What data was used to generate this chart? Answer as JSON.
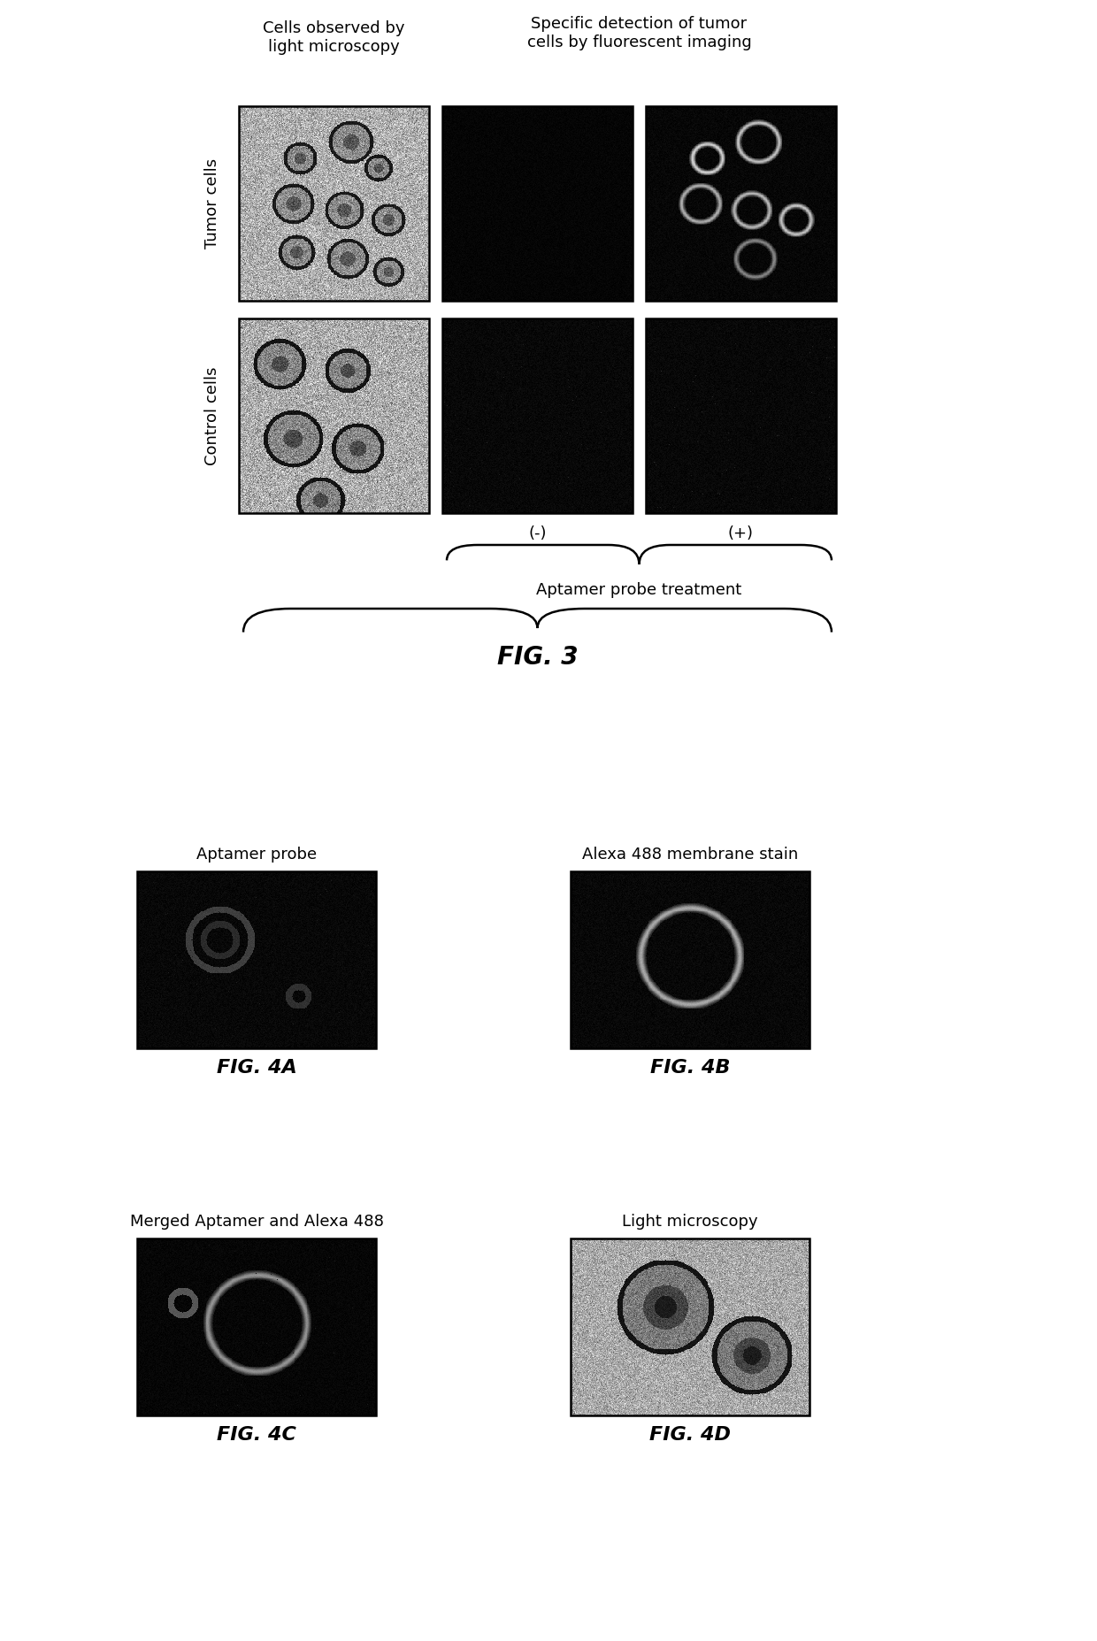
{
  "fig3_title": "FIG. 3",
  "fig3_col_headers": [
    "Cells observed by\nlight microscopy",
    "Specific detection of tumor\ncells by fluorescent imaging"
  ],
  "fig3_row_labels": [
    "Tumor cells",
    "Control cells"
  ],
  "fig3_brace_label_minus": "(-)",
  "fig3_brace_label_plus": "(+)",
  "fig3_aptamer_label": "Aptamer probe treatment",
  "fig4a_title": "Aptamer probe",
  "fig4a_label": "FIG. 4A",
  "fig4b_title": "Alexa 488 membrane stain",
  "fig4b_label": "FIG. 4B",
  "fig4c_title": "Merged Aptamer and Alexa 488",
  "fig4c_label": "FIG. 4C",
  "fig4d_title": "Light microscopy",
  "fig4d_label": "FIG. 4D",
  "bg_color": "#ffffff",
  "text_color": "#000000",
  "fig_label_fontsize": 16,
  "header_fontsize": 13,
  "row_label_fontsize": 13,
  "annotation_fontsize": 13,
  "fig_title_fontsize": 20
}
